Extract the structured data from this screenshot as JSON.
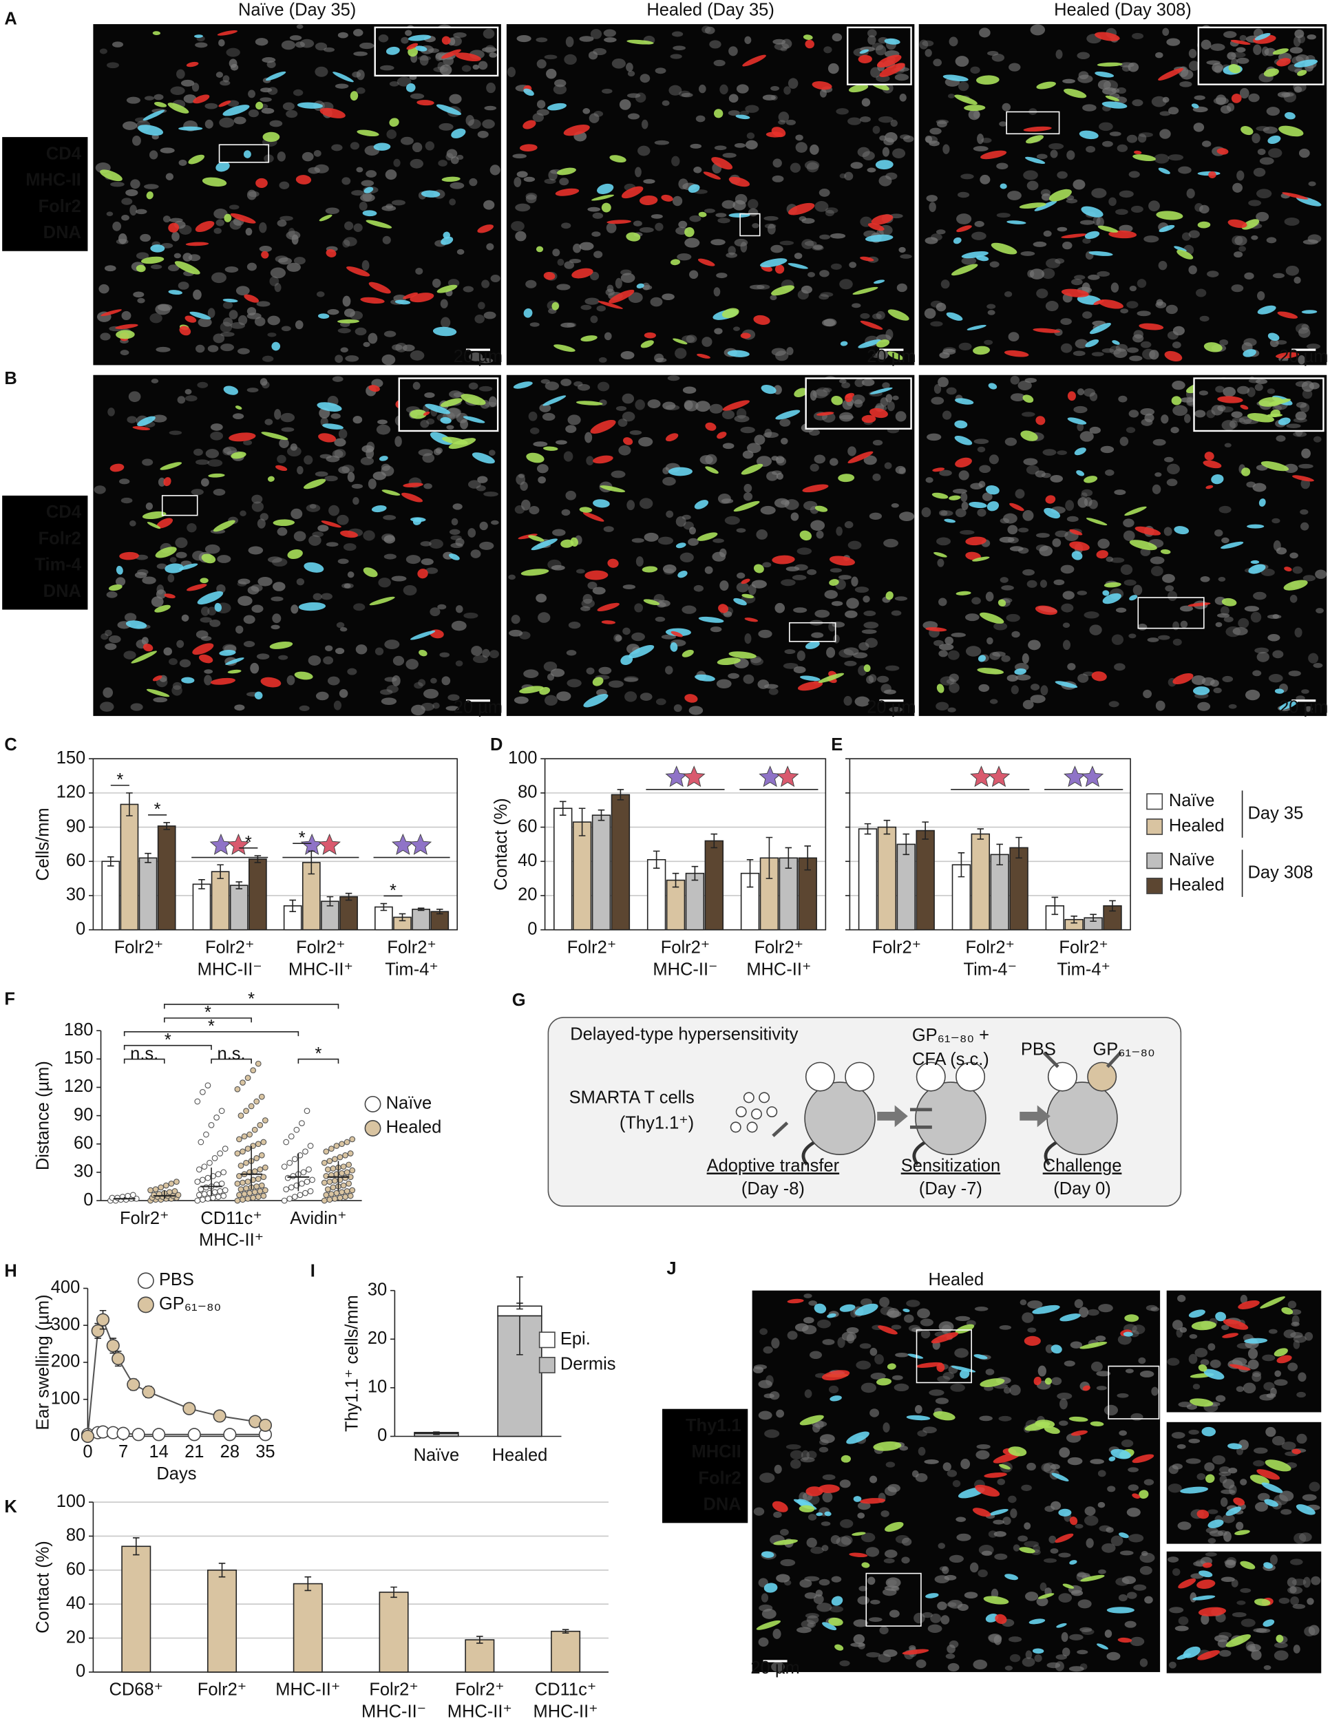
{
  "images": {
    "column_titles": [
      "Naïve (Day 35)",
      "Healed (Day 35)",
      "Healed (Day 308)"
    ],
    "scale_bar": "20 µm",
    "rows": [
      {
        "panel": "A",
        "channels": [
          {
            "name": "CD4",
            "color": "#67d4ef"
          },
          {
            "name": "MHC-II",
            "color": "#a8e05a"
          },
          {
            "name": "Folr2",
            "color": "#e8312a"
          },
          {
            "name": "DNA",
            "color": "#ffffff"
          }
        ]
      },
      {
        "panel": "B",
        "channels": [
          {
            "name": "CD4",
            "color": "#67d4ef"
          },
          {
            "name": "Folr2",
            "color": "#a8e05a"
          },
          {
            "name": "Tim-4",
            "color": "#e8312a"
          },
          {
            "name": "DNA",
            "color": "#ffffff"
          }
        ]
      }
    ],
    "J": {
      "panel": "J",
      "title": "Healed",
      "channels": [
        {
          "name": "Thy1.1",
          "color": "#67d4ef"
        },
        {
          "name": "MHCII",
          "color": "#a8e05a"
        },
        {
          "name": "Folr2",
          "color": "#e8312a"
        },
        {
          "name": "DNA",
          "color": "#ffffff"
        }
      ]
    }
  },
  "diagram": {
    "panel": "G",
    "title": "Delayed-type hypersensitivity",
    "cells": [
      "SMARTA T cells",
      "(Thy1.1⁺)"
    ],
    "agent": [
      "GP₆₁₋₈₀ +",
      "CFA (s.c.)"
    ],
    "sides": [
      "PBS",
      "GP₆₁₋₈₀"
    ],
    "steps": [
      {
        "label": "Adoptive transfer",
        "day": "(Day -8)"
      },
      {
        "label": "Sensitization",
        "day": "(Day -7)"
      },
      {
        "label": "Challenge",
        "day": "(Day 0)"
      }
    ]
  },
  "chart_data": [
    {
      "panel": "C",
      "type": "grouped_bar",
      "ylabel": "Cells/mm",
      "categories": [
        [
          "Folr2⁺"
        ],
        [
          "Folr2⁺",
          "MHC-II⁻"
        ],
        [
          "Folr2⁺",
          "MHC-II⁺"
        ],
        [
          "Folr2⁺",
          "Tim-4⁺"
        ]
      ],
      "series": [
        {
          "name": "Naïve",
          "color": "#ffffff",
          "values": [
            60,
            40,
            21,
            20
          ],
          "errors": [
            4,
            4,
            5,
            3
          ]
        },
        {
          "name": "Healed",
          "color": "#d9c4a1",
          "values": [
            110,
            51,
            59,
            11
          ],
          "errors": [
            10,
            6,
            10,
            3
          ]
        },
        {
          "name": "Naïve",
          "color": "#bfbfbf",
          "values": [
            63,
            39,
            25,
            18
          ],
          "errors": [
            4,
            3,
            4,
            1
          ]
        },
        {
          "name": "Healed",
          "color": "#5c4631",
          "values": [
            91,
            62,
            29,
            16
          ],
          "errors": [
            3,
            3,
            3,
            2
          ]
        }
      ],
      "legend_groups": [
        {
          "label": "Day 35",
          "series": [
            0,
            1
          ]
        },
        {
          "label": "Day 308",
          "series": [
            2,
            3
          ]
        }
      ],
      "ylim": [
        0,
        150
      ],
      "yticks": [
        0,
        30,
        60,
        90,
        120,
        150
      ],
      "grid": true,
      "significance": [
        {
          "category": 0,
          "series": [
            0,
            1
          ],
          "label": "*"
        },
        {
          "category": 0,
          "series": [
            2,
            3
          ],
          "label": "*"
        },
        {
          "category": 1,
          "series": [
            2,
            3
          ],
          "label": "*"
        },
        {
          "category": 2,
          "series": [
            0,
            1
          ],
          "label": "*"
        },
        {
          "category": 3,
          "series": [
            0,
            1
          ],
          "label": "*"
        }
      ]
    },
    {
      "panel": "D",
      "type": "grouped_bar",
      "ylabel": "Contact (%)",
      "categories": [
        [
          "Folr2⁺"
        ],
        [
          "Folr2⁺",
          "MHC-II⁻"
        ],
        [
          "Folr2⁺",
          "MHC-II⁺"
        ]
      ],
      "series": [
        {
          "color": "#ffffff",
          "values": [
            71,
            41,
            33
          ],
          "errors": [
            4,
            5,
            8
          ]
        },
        {
          "color": "#d9c4a1",
          "values": [
            63,
            29,
            42
          ],
          "errors": [
            8,
            4,
            12
          ]
        },
        {
          "color": "#bfbfbf",
          "values": [
            67,
            33,
            42
          ],
          "errors": [
            3,
            4,
            6
          ]
        },
        {
          "color": "#5c4631",
          "values": [
            79,
            52,
            42
          ],
          "errors": [
            3,
            4,
            7
          ]
        }
      ],
      "ylim": [
        0,
        100
      ],
      "yticks": [
        0,
        20,
        40,
        60,
        80,
        100
      ],
      "grid": true
    },
    {
      "panel": "E",
      "type": "grouped_bar",
      "categories": [
        [
          "Folr2⁺"
        ],
        [
          "Folr2⁺",
          "Tim-4⁻"
        ],
        [
          "Folr2⁺",
          "Tim-4⁺"
        ]
      ],
      "series": [
        {
          "color": "#ffffff",
          "values": [
            59,
            38,
            14
          ],
          "errors": [
            3,
            7,
            5
          ]
        },
        {
          "color": "#d9c4a1",
          "values": [
            60,
            56,
            6
          ],
          "errors": [
            4,
            3,
            2
          ]
        },
        {
          "color": "#bfbfbf",
          "values": [
            50,
            44,
            7
          ],
          "errors": [
            6,
            6,
            2
          ]
        },
        {
          "color": "#5c4631",
          "values": [
            58,
            48,
            14
          ],
          "errors": [
            5,
            6,
            3
          ]
        }
      ],
      "ylim": [
        0,
        100
      ],
      "yticks": [
        0,
        20,
        40,
        60,
        80,
        100
      ],
      "grid": true,
      "show_tick_labels": false
    },
    {
      "panel": "F",
      "type": "dot",
      "ylabel": "Distance (µm)",
      "categories": [
        [
          "Folr2⁺"
        ],
        [
          "CD11c⁺",
          "MHC-II⁺"
        ],
        [
          "Avidin⁺"
        ]
      ],
      "series": [
        {
          "name": "Naïve",
          "color": "#ffffff",
          "values": [
            [
              0,
              0,
              1,
              1,
              2,
              2,
              3,
              3,
              4,
              5,
              6
            ],
            [
              0,
              1,
              2,
              3,
              4,
              5,
              6,
              7,
              8,
              9,
              10,
              11,
              12,
              14,
              15,
              17,
              18,
              20,
              22,
              24,
              26,
              28,
              30,
              33,
              36,
              40,
              45,
              50,
              55,
              62,
              70,
              80,
              88,
              95,
              105,
              115,
              122
            ],
            [
              0,
              2,
              4,
              6,
              8,
              10,
              12,
              14,
              16,
              18,
              20,
              22,
              24,
              26,
              28,
              30,
              33,
              36,
              40,
              44,
              48,
              52,
              58,
              62,
              68,
              75,
              82,
              95
            ]
          ],
          "median": [
            2,
            15,
            25
          ],
          "iqr": [
            [
              1,
              4
            ],
            [
              5,
              35
            ],
            [
              10,
              50
            ]
          ]
        },
        {
          "name": "Healed",
          "color": "#d9c4a1",
          "values": [
            [
              0,
              1,
              1,
              2,
              2,
              3,
              3,
              4,
              4,
              5,
              5,
              6,
              6,
              7,
              8,
              9,
              10,
              11,
              12,
              14,
              16,
              18,
              20
            ],
            [
              0,
              1,
              2,
              3,
              4,
              5,
              6,
              7,
              8,
              9,
              10,
              11,
              12,
              13,
              14,
              15,
              16,
              18,
              19,
              20,
              22,
              23,
              25,
              26,
              28,
              30,
              31,
              33,
              35,
              37,
              40,
              42,
              45,
              48,
              50,
              52,
              55,
              58,
              60,
              62,
              65,
              68,
              70,
              75,
              80,
              85,
              90,
              95,
              100,
              105,
              110,
              118,
              125,
              130,
              138,
              145
            ],
            [
              0,
              1,
              2,
              3,
              4,
              5,
              6,
              7,
              8,
              9,
              10,
              11,
              12,
              14,
              15,
              16,
              18,
              19,
              20,
              21,
              22,
              24,
              25,
              26,
              27,
              28,
              29,
              30,
              32,
              33,
              34,
              35,
              36,
              38,
              40,
              42,
              44,
              46,
              48,
              50,
              52,
              55,
              58,
              60,
              62,
              65
            ]
          ],
          "median": [
            5,
            28,
            25
          ],
          "iqr": [
            [
              2,
              11
            ],
            [
              12,
              58
            ],
            [
              10,
              42
            ]
          ]
        }
      ],
      "ylim": [
        0,
        180
      ],
      "yticks": [
        0,
        30,
        60,
        90,
        120,
        150,
        180
      ],
      "significance": [
        {
          "from": [
            0,
            0
          ],
          "to": [
            0,
            1
          ],
          "label": "n.s."
        },
        {
          "from": [
            1,
            0
          ],
          "to": [
            1,
            1
          ],
          "label": "n.s."
        },
        {
          "from": [
            2,
            0
          ],
          "to": [
            2,
            1
          ],
          "label": "*"
        },
        {
          "from": [
            0,
            0
          ],
          "to": [
            1,
            0
          ],
          "label": "*"
        },
        {
          "from": [
            0,
            0
          ],
          "to": [
            2,
            0
          ],
          "label": "*"
        },
        {
          "from": [
            0,
            1
          ],
          "to": [
            1,
            1
          ],
          "label": "*"
        },
        {
          "from": [
            0,
            1
          ],
          "to": [
            2,
            1
          ],
          "label": "*"
        }
      ]
    },
    {
      "panel": "H",
      "type": "line",
      "ylabel": "Ear swelling (µm)",
      "xlabel": "Days",
      "series": [
        {
          "name": "PBS",
          "color": "#ffffff",
          "x": [
            0,
            2,
            3,
            5,
            7,
            10,
            14,
            21,
            28,
            35
          ],
          "values": [
            5,
            10,
            12,
            10,
            8,
            5,
            5,
            5,
            5,
            5
          ],
          "errors": [
            2,
            3,
            3,
            3,
            2,
            2,
            2,
            2,
            2,
            2
          ]
        },
        {
          "name": "GP₆₁₋₈₀",
          "color": "#d9c4a1",
          "x": [
            0,
            2,
            3,
            5,
            6,
            9,
            12,
            20,
            26,
            33,
            35
          ],
          "values": [
            0,
            285,
            315,
            245,
            210,
            140,
            120,
            75,
            55,
            40,
            30
          ],
          "errors": [
            0,
            20,
            25,
            20,
            20,
            15,
            15,
            12,
            8,
            8,
            6
          ]
        }
      ],
      "xlim": [
        0,
        35
      ],
      "xticks": [
        0,
        7,
        14,
        21,
        28,
        35
      ],
      "ylim": [
        0,
        400
      ],
      "yticks": [
        0,
        100,
        200,
        300,
        400
      ]
    },
    {
      "panel": "I",
      "type": "stacked_bar",
      "ylabel": "Thy1.1⁺ cells/mm",
      "categories": [
        "Naïve",
        "Healed"
      ],
      "series": [
        {
          "name": "Epi.",
          "color": "#ffffff",
          "values": [
            0.2,
            2
          ],
          "errors": [
            0.1,
            0.6
          ]
        },
        {
          "name": "Dermis",
          "color": "#bfbfbf",
          "values": [
            0.6,
            24.8
          ],
          "errors": [
            0.2,
            8
          ]
        }
      ],
      "ylim": [
        0,
        30
      ],
      "yticks": [
        0,
        10,
        20,
        30
      ]
    },
    {
      "panel": "K",
      "type": "bar",
      "ylabel": "Contact (%)",
      "categories": [
        [
          "CD68⁺"
        ],
        [
          "Folr2⁺"
        ],
        [
          "MHC-II⁺"
        ],
        [
          "Folr2⁺",
          "MHC-II⁻"
        ],
        [
          "Folr2⁺",
          "MHC-II⁺"
        ],
        [
          "CD11c⁺",
          "MHC-II⁺"
        ]
      ],
      "values": [
        74,
        60,
        52,
        47,
        19,
        24
      ],
      "errors": [
        5,
        4,
        4,
        3,
        2,
        1
      ],
      "color": "#d9c4a1",
      "ylim": [
        0,
        100
      ],
      "yticks": [
        0,
        20,
        40,
        60,
        80,
        100
      ],
      "grid": true
    }
  ]
}
